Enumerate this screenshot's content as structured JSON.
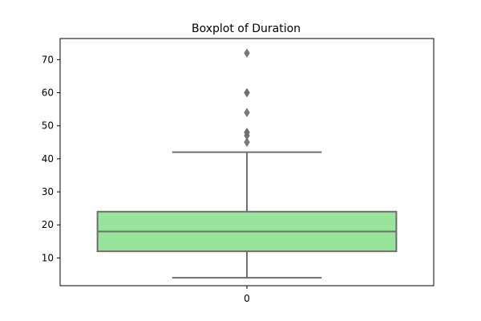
{
  "chart_data": {
    "type": "boxplot",
    "title": "Boxplot of Duration",
    "xlabel": "",
    "ylabel": "",
    "categories": [
      "0"
    ],
    "y_ticks": [
      10,
      20,
      30,
      40,
      50,
      60,
      70
    ],
    "ylim": [
      1.6,
      76.4
    ],
    "grid": false,
    "box": {
      "category": "0",
      "whisker_low": 4,
      "q1": 12,
      "median": 18,
      "q3": 24,
      "whisker_high": 42,
      "outliers": [
        45,
        47,
        48,
        48,
        54,
        60,
        60,
        72
      ]
    },
    "colors": {
      "box_fill": "#98e49b",
      "box_edge": "#6e6e6e",
      "axis": "#000000"
    }
  }
}
